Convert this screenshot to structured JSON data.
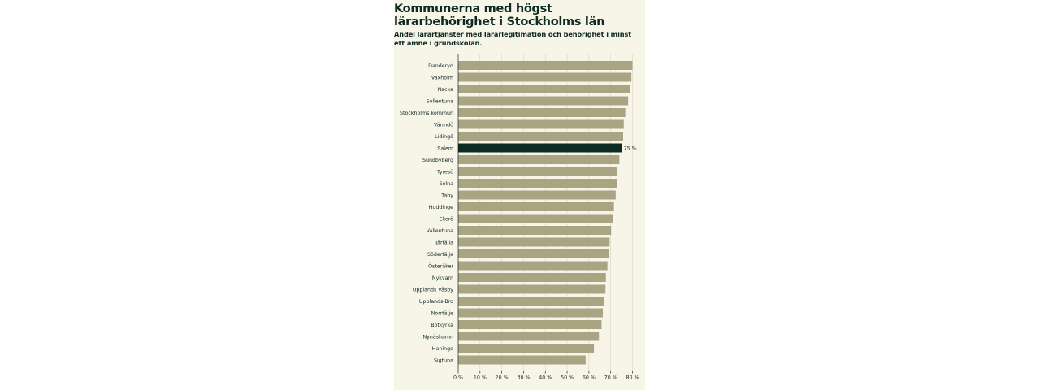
{
  "colors": {
    "background": "#f7f4e8",
    "bar": "#a9a582",
    "highlight": "#0d2b23",
    "text": "#0d2b23",
    "grid": "#d9d5c2"
  },
  "chart_data": {
    "type": "bar",
    "orientation": "horizontal",
    "title": "Kommunerna med högst lärarbehörighet i Stockholms län",
    "subtitle": "Andel lärartjänster med lärarlegitimation och behörighet i minst ett ämne i grundskolan.",
    "categories": [
      "Danderyd",
      "Vaxholm",
      "Nacka",
      "Sollentuna",
      "Stockholms kommun",
      "Värmdö",
      "Lidingö",
      "Salem",
      "Sundbyberg",
      "Tyresö",
      "Solna",
      "Täby",
      "Huddinge",
      "Ekerö",
      "Vallentuna",
      "Järfälla",
      "Södertälje",
      "Österåker",
      "Nykvarn",
      "Upplands Väsby",
      "Upplands-Bro",
      "Norrtälje",
      "Botkyrka",
      "Nynäshamn",
      "Haninge",
      "Sigtuna"
    ],
    "values": [
      80,
      79.5,
      78.8,
      78,
      76.7,
      76,
      75.7,
      75,
      74,
      73,
      72.8,
      72.3,
      71.5,
      71.2,
      70.2,
      69.5,
      69.3,
      68.5,
      67.8,
      67.6,
      67,
      66.4,
      65.8,
      64.6,
      62.3,
      58.5
    ],
    "highlight_category": "Salem",
    "data_labels": [
      {
        "category": "Salem",
        "text": "75 %"
      }
    ],
    "xlim": [
      0,
      80
    ],
    "xticks": [
      0,
      10,
      20,
      30,
      40,
      50,
      60,
      70,
      80
    ],
    "xtick_labels": [
      "0 %",
      "10 %",
      "20 %",
      "30 %",
      "40 %",
      "50 %",
      "60 %",
      "70 %",
      "80 %"
    ],
    "xlabel": "",
    "ylabel": "",
    "grid": true
  }
}
